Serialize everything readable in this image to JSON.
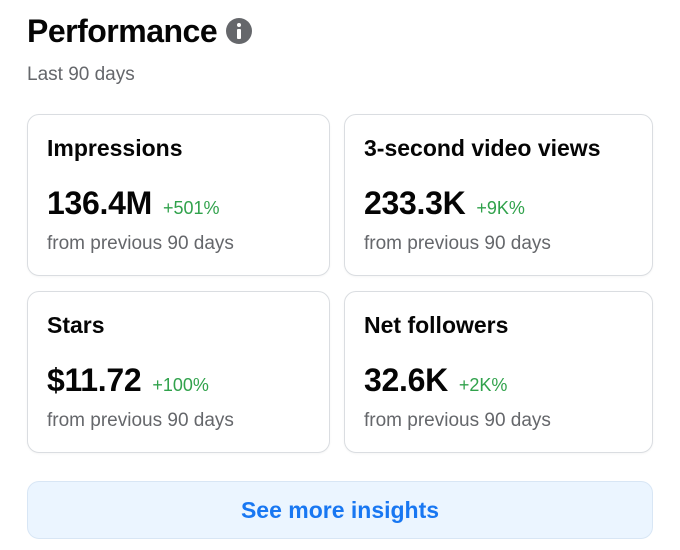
{
  "header": {
    "title": "Performance",
    "subtitle": "Last 90 days"
  },
  "cards": [
    {
      "label": "Impressions",
      "value": "136.4M",
      "change": "+501%",
      "sub": "from previous 90 days"
    },
    {
      "label": "3-second video views",
      "value": "233.3K",
      "change": "+9K%",
      "sub": "from previous 90 days"
    },
    {
      "label": "Stars",
      "value": "$11.72",
      "change": "+100%",
      "sub": "from previous 90 days"
    },
    {
      "label": "Net followers",
      "value": "32.6K",
      "change": "+2K%",
      "sub": "from previous 90 days"
    }
  ],
  "footer": {
    "button_label": "See more insights"
  },
  "colors": {
    "positive_change": "#31a24c",
    "link": "#1877f2",
    "button_bg": "#ebf5ff"
  },
  "icons": {
    "info": "info-icon"
  }
}
